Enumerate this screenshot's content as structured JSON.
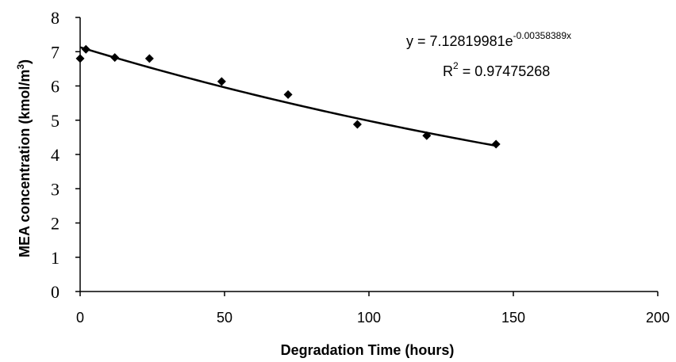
{
  "chart_data": {
    "type": "scatter",
    "xlabel": "Degradation Time (hours)",
    "ylabel_main": "MEA concentration (kmol/m",
    "ylabel_sup": "3",
    "ylabel_tail": ")",
    "xlim": [
      0,
      200
    ],
    "ylim": [
      0,
      8
    ],
    "xticks": [
      "0",
      "50",
      "100",
      "150",
      "200"
    ],
    "xtick_values": [
      0,
      50,
      100,
      150,
      200
    ],
    "yticks": [
      "0",
      "1",
      "2",
      "3",
      "4",
      "5",
      "6",
      "7",
      "8"
    ],
    "ytick_values": [
      0,
      1,
      2,
      3,
      4,
      5,
      6,
      7,
      8
    ],
    "grid": false,
    "series": [
      {
        "marker": "diamond",
        "x": [
          0,
          2,
          12,
          24,
          49,
          72,
          96,
          120,
          144
        ],
        "y": [
          6.8,
          7.07,
          6.83,
          6.8,
          6.13,
          5.75,
          4.88,
          4.55,
          4.3
        ]
      }
    ],
    "trendline": {
      "type": "exponential",
      "a": 7.12819981,
      "b": -0.00358389,
      "x_range": [
        0,
        144
      ]
    },
    "annotations": {
      "eq_prefix": "y = 7.12819981e",
      "eq_exponent": "-0.00358389x",
      "r2_prefix": "R",
      "r2_sup": "2",
      "r2_value": " = 0.97475268"
    }
  }
}
